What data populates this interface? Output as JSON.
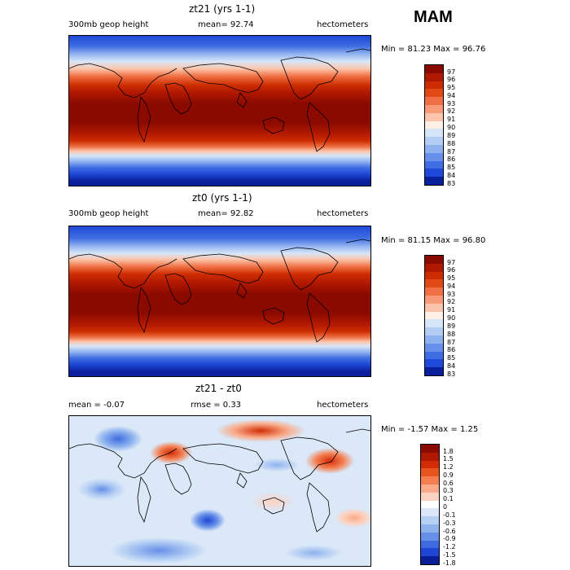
{
  "header": {
    "season": "MAM"
  },
  "panels": [
    {
      "title": "zt21 (yrs 1-1)",
      "left_label": "300mb geop height",
      "mid_label": "mean=   92.74",
      "units": "hectometers",
      "minmax": "Min =  81.23 Max =  96.76",
      "cbar_levels": [
        "97",
        "96",
        "95",
        "94",
        "93",
        "92",
        "91",
        "90",
        "89",
        "88",
        "87",
        "86",
        "85",
        "84",
        "83"
      ],
      "cbar_colors": [
        "#8b0a00",
        "#b01800",
        "#cc2c00",
        "#e04a14",
        "#ef7044",
        "#f89a78",
        "#fcc5ab",
        "#fff0e6",
        "#d6e6f8",
        "#b4cdf5",
        "#8fb1f0",
        "#6690ea",
        "#3f6ee2",
        "#1f49d8",
        "#0a1f9c"
      ]
    },
    {
      "title": "zt0 (yrs 1-1)",
      "left_label": "300mb geop height",
      "mid_label": "mean=   92.82",
      "units": "hectometers",
      "minmax": "Min =  81.15 Max =  96.80",
      "cbar_levels": [
        "97",
        "96",
        "95",
        "94",
        "93",
        "92",
        "91",
        "90",
        "89",
        "88",
        "87",
        "86",
        "85",
        "84",
        "83"
      ],
      "cbar_colors": [
        "#8b0a00",
        "#b01800",
        "#cc2c00",
        "#e04a14",
        "#ef7044",
        "#f89a78",
        "#fcc5ab",
        "#fff0e6",
        "#d6e6f8",
        "#b4cdf5",
        "#8fb1f0",
        "#6690ea",
        "#3f6ee2",
        "#1f49d8",
        "#0a1f9c"
      ]
    },
    {
      "title": "zt21 - zt0",
      "left_label": "mean =   -0.07",
      "mid_label": "rmse =    0.33",
      "units": "hectometers",
      "minmax": "Min =  -1.57 Max =   1.25",
      "cbar_levels": [
        "1.8",
        "1.5",
        "1.2",
        "0.9",
        "0.6",
        "0.3",
        "0.1",
        "0",
        "-0.1",
        "-0.3",
        "-0.6",
        "-0.9",
        "-1.2",
        "-1.5",
        "-1.8"
      ],
      "cbar_colors": [
        "#8b0a00",
        "#b01800",
        "#d22c06",
        "#e8541e",
        "#f47e50",
        "#f9aa88",
        "#fdd2c0",
        "#ffffff",
        "#dbe8f8",
        "#b6d0f4",
        "#8db2ee",
        "#6690e8",
        "#3e6ce0",
        "#1f46d4",
        "#0a1f96"
      ]
    }
  ]
}
